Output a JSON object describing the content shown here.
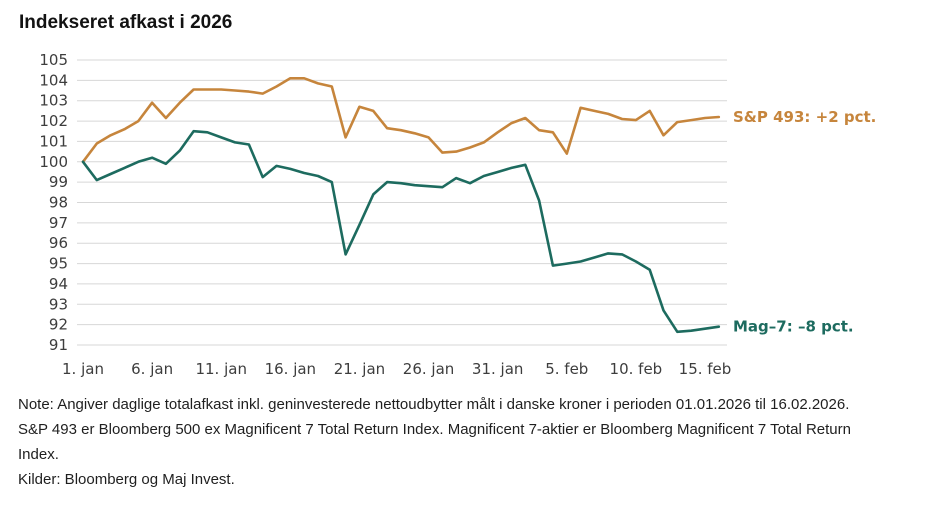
{
  "title": "Indekseret afkast i 2026",
  "colors": {
    "sp493": "#c6853c",
    "mag7": "#1d6b5f",
    "grid": "#d7d7d7",
    "tick_text": "#3d3d3d",
    "title_text": "#121212",
    "note_text": "#1f1f1f",
    "background": "#ffffff"
  },
  "chart_data": {
    "type": "line",
    "title": "Indekseret afkast i 2026",
    "xlabel": "",
    "ylabel": "",
    "ylim": [
      91,
      105
    ],
    "y_ticks": [
      105,
      104,
      103,
      102,
      101,
      100,
      99,
      98,
      97,
      96,
      95,
      94,
      93,
      92,
      91
    ],
    "grid": "horizontal",
    "legend_position": "end-of-line",
    "x_unit": "days from 01.01.2026 to 16.02.2026",
    "x_tick_labels": [
      "1. jan",
      "6. jan",
      "11. jan",
      "16. jan",
      "21. jan",
      "26. jan",
      "31. jan",
      "5. feb",
      "10. feb",
      "15. feb"
    ],
    "x_tick_days": [
      0,
      5,
      10,
      15,
      20,
      25,
      30,
      35,
      40,
      45
    ],
    "series": [
      {
        "name": "S&P 493",
        "end_label": "S&P 493: +2 pct.",
        "color": "#c6853c",
        "values": [
          100.0,
          100.9,
          101.3,
          101.6,
          102.0,
          102.9,
          102.15,
          102.9,
          103.55,
          103.55,
          103.55,
          103.5,
          103.45,
          103.35,
          103.7,
          104.1,
          104.1,
          103.85,
          103.7,
          101.2,
          102.7,
          102.5,
          101.65,
          101.55,
          101.4,
          101.2,
          100.45,
          100.5,
          100.7,
          100.95,
          101.45,
          101.9,
          102.15,
          101.55,
          101.45,
          100.4,
          102.65,
          102.5,
          102.35,
          102.1,
          102.05,
          102.5,
          101.3,
          101.95,
          102.05,
          102.15,
          102.2
        ]
      },
      {
        "name": "Mag-7",
        "end_label": "Mag–7: –8 pct.",
        "color": "#1d6b5f",
        "values": [
          100.0,
          99.1,
          99.4,
          99.7,
          100.0,
          100.2,
          99.9,
          100.55,
          101.5,
          101.45,
          101.2,
          100.95,
          100.85,
          99.25,
          99.8,
          99.65,
          99.45,
          99.3,
          99.0,
          95.45,
          96.9,
          98.4,
          99.0,
          98.95,
          98.85,
          98.8,
          98.75,
          99.2,
          98.95,
          99.3,
          99.5,
          99.7,
          99.85,
          98.1,
          94.9,
          95.0,
          95.1,
          95.3,
          95.5,
          95.45,
          95.1,
          94.7,
          92.7,
          91.65,
          91.7,
          91.8,
          91.9
        ]
      }
    ]
  },
  "note": {
    "lines": [
      "Note: Angiver daglige totalafkast inkl. geninvesterede nettoudbytter målt i danske kroner i perioden 01.01.2026 til 16.02.2026.",
      "S&P 493 er Bloomberg 500 ex Magnificent 7 Total Return Index. Magnificent 7-aktier er Bloomberg Magnificent 7 Total Return",
      "Index.",
      "Kilder: Bloomberg og Maj Invest."
    ]
  }
}
